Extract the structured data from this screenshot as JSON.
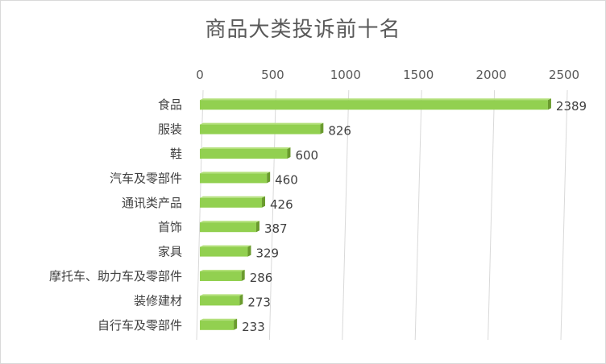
{
  "chart_data": {
    "type": "bar",
    "orientation": "horizontal",
    "title": "商品大类投诉前十名",
    "categories": [
      "食品",
      "服装",
      "鞋",
      "汽车及零部件",
      "通讯类产品",
      "首饰",
      "家具",
      "摩托车、助力车及零部件",
      "装修建材",
      "自行车及零部件"
    ],
    "values": [
      2389,
      826,
      600,
      460,
      426,
      387,
      329,
      286,
      273,
      233
    ],
    "xlim": [
      0,
      2500
    ],
    "x_ticks": [
      0,
      500,
      1000,
      1500,
      2000,
      2500
    ],
    "x_axis_position": "top",
    "grid": true,
    "bar_color": "#92d050",
    "bar_side_color": "#6a9b2e",
    "bar_top_color": "#b3e07a",
    "data_labels": true
  }
}
